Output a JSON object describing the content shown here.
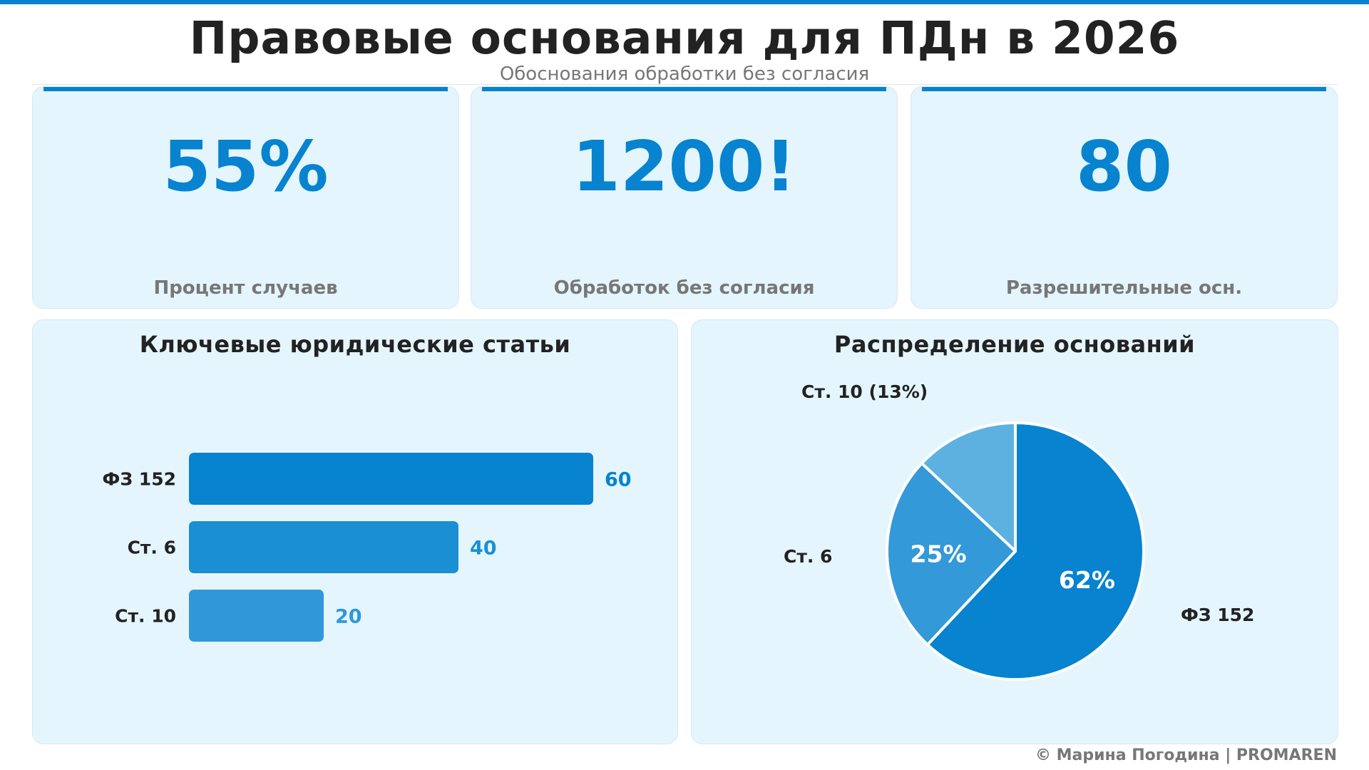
{
  "header": {
    "title": "Правовые основания для ПДн в 2026",
    "subtitle": "Обоснования обработки без согласия"
  },
  "kpis": [
    {
      "value": "55%",
      "label": "Процент случаев"
    },
    {
      "value": "1200!",
      "label": "Обработок без согласия"
    },
    {
      "value": "80",
      "label": "Разрешительные осн."
    }
  ],
  "bar_panel": {
    "title": "Ключевые юридические статьи"
  },
  "pie_panel": {
    "title": "Распределение оснований"
  },
  "footer": {
    "credit": "© Марина Погодина | PROMAREN"
  },
  "colors": {
    "accent": "#0783D0",
    "bar_2": "#1A8FD3",
    "bar_3": "#3098D8",
    "pie_mid": "#3399D8",
    "pie_light": "#5DB1E0",
    "card_bg": "#E4F5FD",
    "label_gray": "#777777",
    "text_dark": "#222222"
  },
  "chart_data": [
    {
      "type": "bar",
      "orientation": "horizontal",
      "title": "Ключевые юридические статьи",
      "categories": [
        "ФЗ 152",
        "Ст. 6",
        "Ст. 10"
      ],
      "values": [
        60,
        40,
        20
      ],
      "value_labels": [
        "60",
        "40",
        "20"
      ],
      "colors": [
        "#0783D0",
        "#1A8FD3",
        "#3098D8"
      ],
      "xlabel": "",
      "ylabel": "",
      "grid": false,
      "legend": false
    },
    {
      "type": "pie",
      "title": "Распределение оснований",
      "categories": [
        "ФЗ 152",
        "Ст. 6",
        "Ст. 10"
      ],
      "values": [
        62,
        25,
        13
      ],
      "slice_labels": [
        "62%",
        "25%",
        ""
      ],
      "outer_labels": [
        "ФЗ 152",
        "Ст. 6",
        "Ст. 10 (13%)"
      ],
      "colors": [
        "#0783D0",
        "#3399D8",
        "#5DB1E0"
      ],
      "start_angle": "12 o'clock, clockwise",
      "legend": false
    }
  ]
}
